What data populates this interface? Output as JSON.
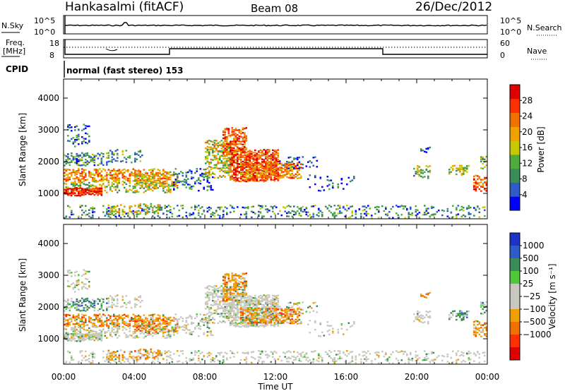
{
  "header": {
    "site": "Hankasalmi (fitACF)",
    "beam": "Beam 08",
    "date": "26/Dec/2012"
  },
  "noise_panel": {
    "left_label": "N.Sky",
    "right_label": "N.Search",
    "left_ticks": [
      "10^5",
      "10^0"
    ],
    "right_ticks": [
      "10^5",
      "10^0"
    ]
  },
  "freq_panel": {
    "left_label_line1": "Freq.",
    "left_label_line2": "[MHz]",
    "right_label": "Nave",
    "left_ticks": [
      "18",
      "8"
    ],
    "right_ticks": [
      "60",
      "0"
    ]
  },
  "cpid": {
    "label": "CPID",
    "text": "normal (fast stereo) 153"
  },
  "chart_data": [
    {
      "type": "heatmap",
      "panel": "power",
      "ylabel": "Slant Range [km]",
      "ylim": [
        200,
        4600
      ],
      "yticks": [
        "1000",
        "2000",
        "3000",
        "4000"
      ],
      "xlim_hours": [
        0,
        24
      ],
      "colorbar_label": "Power [dB]",
      "colorbar_ticks": [
        "4",
        "8",
        "12",
        "16",
        "20",
        "24",
        "28"
      ],
      "colorbar_colors": [
        "#0000ff",
        "#2d5bc8",
        "#3c8c5a",
        "#50aa3c",
        "#c8c800",
        "#f0a000",
        "#f07000",
        "#ff3000",
        "#e00000"
      ]
    },
    {
      "type": "heatmap",
      "panel": "velocity",
      "ylabel": "Slant Range [km]",
      "ylim": [
        200,
        4600
      ],
      "yticks": [
        "1000",
        "2000",
        "3000",
        "4000"
      ],
      "xlim_hours": [
        0,
        24
      ],
      "colorbar_label": "Velocity [m s⁻¹]",
      "colorbar_ticks": [
        "1000",
        "500",
        "100",
        "25",
        "−25",
        "−100",
        "−500",
        "−1000"
      ],
      "colorbar_colors": [
        "#1e32c8",
        "#2d5bc8",
        "#3c8c5a",
        "#50c83c",
        "#c8c8c0",
        "#c8c8c0",
        "#f0a000",
        "#f07000",
        "#ff3000",
        "#e00000"
      ]
    }
  ],
  "x_axis": {
    "ticks": [
      "00:00",
      "04:00",
      "08:00",
      "12:00",
      "16:00",
      "20:00",
      "00:00"
    ],
    "label": "Time UT"
  }
}
